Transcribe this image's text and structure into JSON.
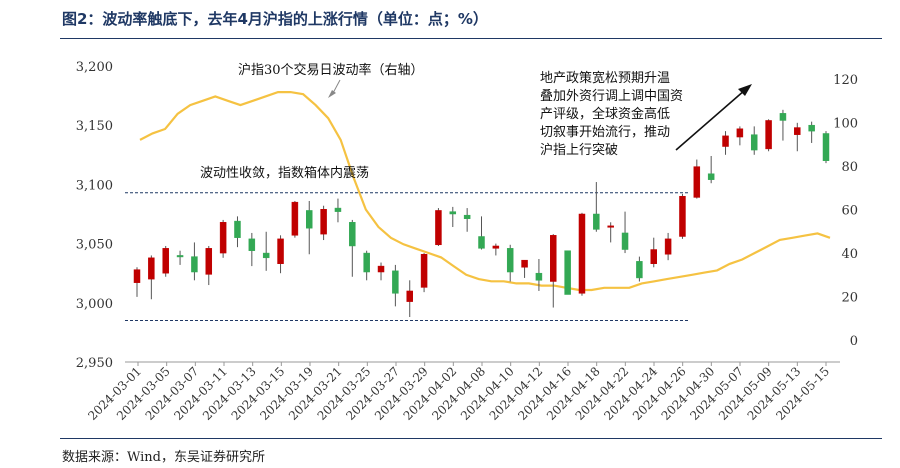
{
  "figure": {
    "title": "图2：波动率触底下，去年4月沪指的上涨行情（单位：点；%）",
    "source": "数据来源：Wind，东吴证券研究所"
  },
  "chart_data": {
    "type": "candlestick+line",
    "left_axis": {
      "ticks": [
        "3,200",
        "3,150",
        "3,100",
        "3,050",
        "3,000",
        "2,950"
      ],
      "ylim": [
        2950,
        3200
      ]
    },
    "right_axis": {
      "ticks": [
        "120",
        "100",
        "80",
        "60",
        "40",
        "20",
        "0"
      ],
      "ylim": [
        0,
        120
      ]
    },
    "x_tick_labels": [
      "2024-03-01",
      "2024-03-05",
      "2024-03-07",
      "2024-03-11",
      "2024-03-13",
      "2024-03-15",
      "2024-03-19",
      "2024-03-21",
      "2024-03-25",
      "2024-03-27",
      "2024-03-29",
      "2024-04-02",
      "2024-04-08",
      "2024-04-10",
      "2024-04-12",
      "2024-04-16",
      "2024-04-18",
      "2024-04-22",
      "2024-04-24",
      "2024-04-26",
      "2024-04-30",
      "2024-05-07",
      "2024-05-09",
      "2024-05-13",
      "2024-05-15"
    ],
    "colors": {
      "up": "#c00000",
      "down": "#33a854",
      "vol_line": "#f5c242",
      "dashed": "#1f3864",
      "wick": "#555555"
    },
    "candles": [
      {
        "d": "2024-03-01",
        "o": 3017,
        "c": 3028,
        "h": 3030,
        "l": 3005
      },
      {
        "d": "2024-03-04",
        "o": 3020,
        "c": 3038,
        "h": 3040,
        "l": 3003
      },
      {
        "d": "2024-03-05",
        "o": 3025,
        "c": 3046,
        "h": 3048,
        "l": 3022
      },
      {
        "d": "2024-03-06",
        "o": 3040,
        "c": 3039,
        "h": 3044,
        "l": 3032
      },
      {
        "d": "2024-03-07",
        "o": 3039,
        "c": 3026,
        "h": 3051,
        "l": 3019
      },
      {
        "d": "2024-03-08",
        "o": 3024,
        "c": 3046,
        "h": 3048,
        "l": 3015
      },
      {
        "d": "2024-03-11",
        "o": 3042,
        "c": 3068,
        "h": 3070,
        "l": 3038
      },
      {
        "d": "2024-03-12",
        "o": 3069,
        "c": 3055,
        "h": 3073,
        "l": 3047
      },
      {
        "d": "2024-03-13",
        "o": 3054,
        "c": 3044,
        "h": 3059,
        "l": 3031
      },
      {
        "d": "2024-03-14",
        "o": 3042,
        "c": 3038,
        "h": 3060,
        "l": 3027
      },
      {
        "d": "2024-03-15",
        "o": 3033,
        "c": 3054,
        "h": 3057,
        "l": 3025
      },
      {
        "d": "2024-03-18",
        "o": 3057,
        "c": 3085,
        "h": 3086,
        "l": 3055
      },
      {
        "d": "2024-03-19",
        "o": 3078,
        "c": 3063,
        "h": 3086,
        "l": 3041
      },
      {
        "d": "2024-03-20",
        "o": 3058,
        "c": 3079,
        "h": 3082,
        "l": 3053
      },
      {
        "d": "2024-03-21",
        "o": 3080,
        "c": 3077,
        "h": 3088,
        "l": 3068
      },
      {
        "d": "2024-03-22",
        "o": 3068,
        "c": 3048,
        "h": 3070,
        "l": 3022
      },
      {
        "d": "2024-03-25",
        "o": 3042,
        "c": 3026,
        "h": 3044,
        "l": 3019
      },
      {
        "d": "2024-03-26",
        "o": 3026,
        "c": 3031,
        "h": 3034,
        "l": 3019
      },
      {
        "d": "2024-03-27",
        "o": 3027,
        "c": 3008,
        "h": 3032,
        "l": 2997
      },
      {
        "d": "2024-03-28",
        "o": 3001,
        "c": 3010,
        "h": 3019,
        "l": 2988
      },
      {
        "d": "2024-03-29",
        "o": 3013,
        "c": 3041,
        "h": 3042,
        "l": 3009
      },
      {
        "d": "2024-04-01",
        "o": 3049,
        "c": 3078,
        "h": 3080,
        "l": 3048
      },
      {
        "d": "2024-04-02",
        "o": 3077,
        "c": 3075,
        "h": 3081,
        "l": 3064
      },
      {
        "d": "2024-04-03",
        "o": 3074,
        "c": 3071,
        "h": 3080,
        "l": 3060
      },
      {
        "d": "2024-04-08",
        "o": 3056,
        "c": 3046,
        "h": 3073,
        "l": 3045
      },
      {
        "d": "2024-04-09",
        "o": 3046,
        "c": 3048,
        "h": 3050,
        "l": 3040
      },
      {
        "d": "2024-04-10",
        "o": 3046,
        "c": 3026,
        "h": 3049,
        "l": 3018
      },
      {
        "d": "2024-04-11",
        "o": 3030,
        "c": 3036,
        "h": 3036,
        "l": 3021
      },
      {
        "d": "2024-04-12",
        "o": 3025,
        "c": 3019,
        "h": 3037,
        "l": 3010
      },
      {
        "d": "2024-04-15",
        "o": 3018,
        "c": 3057,
        "h": 3058,
        "l": 2996
      },
      {
        "d": "2024-04-16",
        "o": 3044,
        "c": 3007,
        "h": 3044,
        "l": 3007
      },
      {
        "d": "2024-04-17",
        "o": 3008,
        "c": 3075,
        "h": 3076,
        "l": 3006
      },
      {
        "d": "2024-04-18",
        "o": 3075,
        "c": 3062,
        "h": 3102,
        "l": 3060
      },
      {
        "d": "2024-04-19",
        "o": 3064,
        "c": 3065,
        "h": 3068,
        "l": 3051
      },
      {
        "d": "2024-04-22",
        "o": 3059,
        "c": 3045,
        "h": 3077,
        "l": 3042
      },
      {
        "d": "2024-04-23",
        "o": 3035,
        "c": 3021,
        "h": 3039,
        "l": 3018
      },
      {
        "d": "2024-04-24",
        "o": 3033,
        "c": 3045,
        "h": 3055,
        "l": 3030
      },
      {
        "d": "2024-04-25",
        "o": 3041,
        "c": 3054,
        "h": 3059,
        "l": 3036
      },
      {
        "d": "2024-04-26",
        "o": 3056,
        "c": 3090,
        "h": 3092,
        "l": 3054
      },
      {
        "d": "2024-04-29",
        "o": 3089,
        "c": 3115,
        "h": 3121,
        "l": 3088
      },
      {
        "d": "2024-04-30",
        "o": 3109,
        "c": 3104,
        "h": 3124,
        "l": 3101
      },
      {
        "d": "2024-05-06",
        "o": 3132,
        "c": 3141,
        "h": 3145,
        "l": 3125
      },
      {
        "d": "2024-05-07",
        "o": 3140,
        "c": 3147,
        "h": 3149,
        "l": 3133
      },
      {
        "d": "2024-05-08",
        "o": 3142,
        "c": 3129,
        "h": 3149,
        "l": 3125
      },
      {
        "d": "2024-05-09",
        "o": 3130,
        "c": 3154,
        "h": 3155,
        "l": 3128
      },
      {
        "d": "2024-05-10",
        "o": 3160,
        "c": 3154,
        "h": 3163,
        "l": 3137
      },
      {
        "d": "2024-05-13",
        "o": 3142,
        "c": 3148,
        "h": 3152,
        "l": 3128
      },
      {
        "d": "2024-05-14",
        "o": 3150,
        "c": 3145,
        "h": 3153,
        "l": 3135
      },
      {
        "d": "2024-05-15",
        "o": 3143,
        "c": 3120,
        "h": 3145,
        "l": 3118
      }
    ],
    "volatility": [
      92,
      95,
      97,
      104,
      108,
      110,
      112,
      110,
      108,
      110,
      112,
      114,
      114,
      113,
      108,
      102,
      92,
      75,
      60,
      52,
      47,
      44,
      42,
      40,
      38,
      34,
      30,
      28,
      27,
      27,
      26,
      26,
      25,
      25,
      24,
      23,
      23,
      24,
      24,
      24,
      26,
      27,
      28,
      29,
      30,
      31,
      32,
      35,
      37,
      40,
      43,
      46,
      47,
      48,
      49,
      47
    ],
    "annotations": {
      "vol_label": "沪指30个交易日波动率（右轴）",
      "box_label": "波动性收敛，指数箱体内震荡",
      "policy_line1": "地产政策宽松预期升温",
      "policy_line2": "叠加外资行调上调中国资",
      "policy_line3": "产评级，全球资金高低",
      "policy_line4": "切叙事开始流行，推动",
      "policy_line5": "沪指上行突破",
      "upper_level": 3093,
      "lower_level": 2985
    }
  }
}
